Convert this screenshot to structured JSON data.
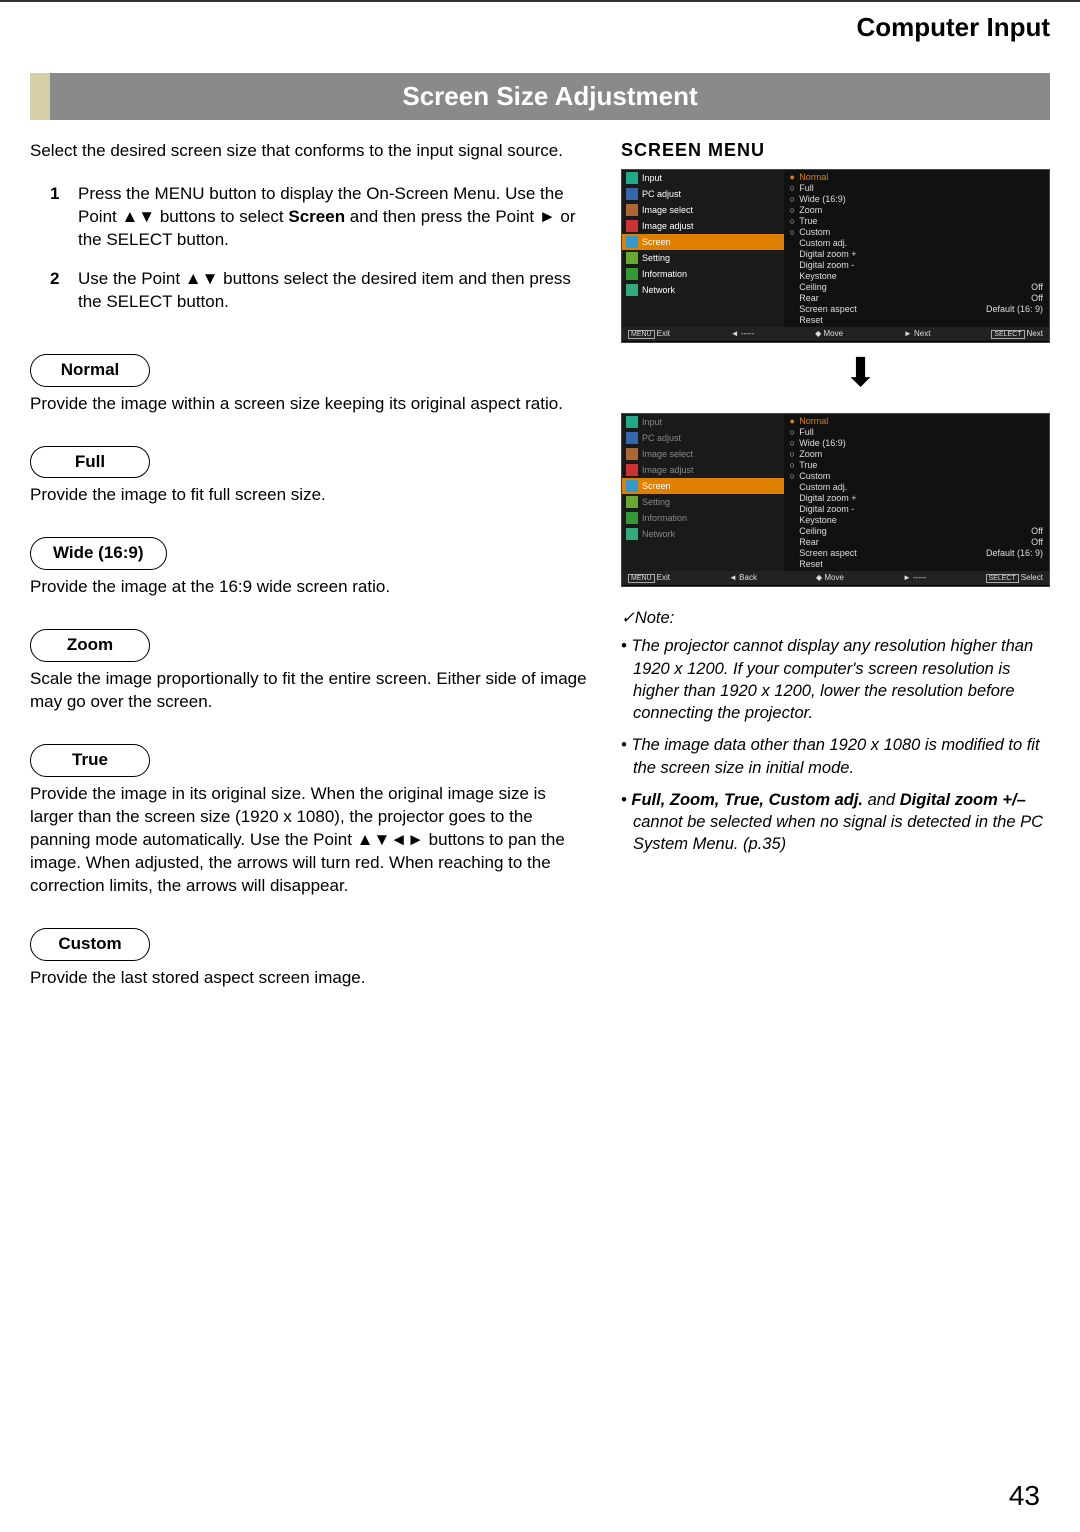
{
  "header": {
    "section": "Computer Input"
  },
  "titleBar": "Screen Size Adjustment",
  "intro": "Select the desired screen size that conforms to the input signal source.",
  "steps": [
    {
      "n": "1",
      "text_parts": [
        "Press the MENU button to display the On-Screen Menu. Use the Point ▲▼ buttons to select ",
        "Screen",
        " and then press the Point ► or the SELECT button."
      ]
    },
    {
      "n": "2",
      "text_parts": [
        "Use the Point ▲▼ buttons select the desired item and then press the SELECT button."
      ]
    }
  ],
  "modes": [
    {
      "label": "Normal",
      "desc": "Provide the image within a screen size keeping its original aspect ratio."
    },
    {
      "label": "Full",
      "desc": "Provide the image to fit full screen size."
    },
    {
      "label": "Wide (16:9)",
      "desc": "Provide the image at the 16:9 wide screen ratio."
    },
    {
      "label": "Zoom",
      "desc": "Scale the image proportionally to fit the entire screen. Either side of image may go over the screen."
    },
    {
      "label": "True",
      "desc": "Provide the image in its original size. When the original image size is larger than the screen size (1920 x 1080), the projector goes to the panning mode automatically. Use the Point ▲▼◄► buttons to pan the image. When adjusted, the arrows will turn red. When reaching to the correction limits, the arrows will disappear."
    },
    {
      "label": "Custom",
      "desc": "Provide the last stored aspect screen image."
    }
  ],
  "right": {
    "heading": "SCREEN MENU",
    "menuItems": [
      {
        "name": "Input",
        "icon": "icon-input"
      },
      {
        "name": "PC adjust",
        "icon": "icon-pc"
      },
      {
        "name": "Image select",
        "icon": "icon-imgsel"
      },
      {
        "name": "Image adjust",
        "icon": "icon-imgadj"
      },
      {
        "name": "Screen",
        "icon": "icon-screen",
        "highlight": true
      },
      {
        "name": "Setting",
        "icon": "icon-setting"
      },
      {
        "name": "Information",
        "icon": "icon-info"
      },
      {
        "name": "Network",
        "icon": "icon-network"
      }
    ],
    "optionsTop": [
      {
        "label": "Normal",
        "radio": "●",
        "sel": true
      },
      {
        "label": "Full",
        "radio": "○"
      },
      {
        "label": "Wide (16:9)",
        "radio": "○"
      },
      {
        "label": "Zoom",
        "radio": "○"
      },
      {
        "label": "True",
        "radio": "○"
      },
      {
        "label": "Custom",
        "radio": "○"
      },
      {
        "label": "Custom adj."
      },
      {
        "label": "Digital zoom +"
      },
      {
        "label": "Digital zoom -"
      },
      {
        "label": "Keystone"
      },
      {
        "label": "Ceiling",
        "right": "Off"
      },
      {
        "label": "Rear",
        "right": "Off"
      },
      {
        "label": "Screen aspect",
        "right": "Default (16: 9)"
      },
      {
        "label": "Reset"
      }
    ],
    "footer1": {
      "exit": "Exit",
      "mid1": "-----",
      "move": "Move",
      "next": "Next",
      "select": "Next"
    },
    "footer2": {
      "exit": "Exit",
      "back": "Back",
      "move": "Move",
      "next": "-----",
      "select": "Select"
    },
    "footerBtn": {
      "menu": "MENU",
      "select": "SELECT"
    },
    "arrowDown": "⬇"
  },
  "note": {
    "head": "✓Note:",
    "items": [
      "The projector cannot display any resolution higher than 1920 x 1200. If your computer's screen resolution is higher than 1920 x 1200, lower the resolution before connecting the projector.",
      "The image data other than 1920 x 1080 is modified to fit the screen size in initial mode."
    ],
    "item3": {
      "bold": "Full, Zoom, True, Custom adj.",
      "mid": " and ",
      "bold2": "Digital zoom +/–",
      "rest": " cannot be selected when no signal is detected in the PC System Menu. (p.35)"
    }
  },
  "pageNumber": "43"
}
